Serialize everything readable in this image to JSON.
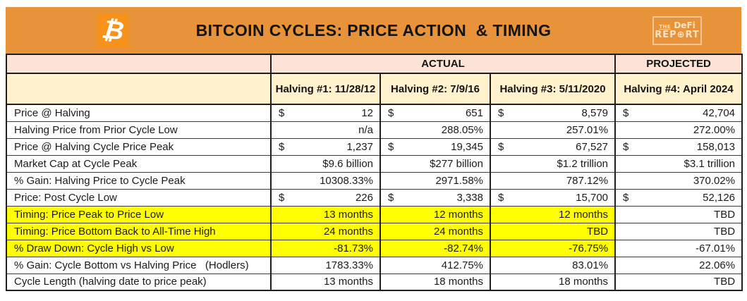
{
  "colors": {
    "titlebar_orange": "#E8923A",
    "bitcoin_orange": "#F7931A",
    "group_header_peach": "#FBE4D5",
    "column_header_cream": "#FFF2CC",
    "highlight_yellow": "#FFFF00"
  },
  "header": {
    "title": "BITCOIN CYCLES: PRICE ACTION  & TIMING",
    "bitcoin_symbol": "₿",
    "logo": {
      "the": "THE",
      "defi": "DeFi",
      "report": "REP⊕RT"
    }
  },
  "chart_data": {
    "type": "table",
    "title": "BITCOIN CYCLES: PRICE ACTION & TIMING",
    "group_headers": [
      {
        "label": "ACTUAL",
        "span": 3
      },
      {
        "label": "PROJECTED",
        "span": 1
      }
    ],
    "columns": [
      "Halving #1: 11/28/12",
      "Halving #2: 7/9/16",
      "Halving #3: 5/11/2020",
      "Halving #4: April 2024"
    ],
    "rows": [
      {
        "label": "Price @ Halving",
        "highlight": false,
        "cells": [
          {
            "cur": "$",
            "val": "12"
          },
          {
            "cur": "$",
            "val": "651"
          },
          {
            "cur": "$",
            "val": "8,579"
          },
          {
            "cur": "$",
            "val": "42,704"
          }
        ]
      },
      {
        "label": "Halving Price from Prior Cycle Low",
        "highlight": false,
        "cells": [
          {
            "val": "n/a"
          },
          {
            "val": "288.05%"
          },
          {
            "val": "257.01%"
          },
          {
            "val": "272.00%"
          }
        ]
      },
      {
        "label": "Price @ Halving Cycle Price Peak",
        "highlight": false,
        "cells": [
          {
            "cur": "$",
            "val": "1,237"
          },
          {
            "cur": "$",
            "val": "19,345"
          },
          {
            "cur": "$",
            "val": "67,527"
          },
          {
            "cur": "$",
            "val": "158,013"
          }
        ]
      },
      {
        "label": "Market Cap at Cycle Peak",
        "highlight": false,
        "cells": [
          {
            "val": "$9.6 billion"
          },
          {
            "val": "$277 billion"
          },
          {
            "val": "$1.2 trillion"
          },
          {
            "val": "$3.1 trillion"
          }
        ]
      },
      {
        "label": "% Gain: Halving Price to Cycle Peak",
        "highlight": false,
        "cells": [
          {
            "val": "10308.33%"
          },
          {
            "val": "2971.58%"
          },
          {
            "val": "787.12%"
          },
          {
            "val": "370.02%"
          }
        ]
      },
      {
        "label": "Price: Post Cycle Low",
        "highlight": false,
        "cells": [
          {
            "cur": "$",
            "val": "226"
          },
          {
            "cur": "$",
            "val": "3,338"
          },
          {
            "cur": "$",
            "val": "15,700"
          },
          {
            "cur": "$",
            "val": "52,126"
          }
        ]
      },
      {
        "label": "Timing: Price Peak to Price Low",
        "highlight": true,
        "cells": [
          {
            "val": "13 months"
          },
          {
            "val": "12 months"
          },
          {
            "val": "12 months"
          },
          {
            "val": "TBD"
          }
        ]
      },
      {
        "label": "Timing: Price Bottom Back to All-Time High",
        "highlight": true,
        "cells": [
          {
            "val": "24 months"
          },
          {
            "val": "24 months"
          },
          {
            "val": "TBD"
          },
          {
            "val": "TBD"
          }
        ]
      },
      {
        "label": "% Draw Down: Cycle High vs Low",
        "highlight": true,
        "cells": [
          {
            "val": "-81.73%"
          },
          {
            "val": "-82.74%"
          },
          {
            "val": "-76.75%"
          },
          {
            "val": "-67.01%"
          }
        ]
      },
      {
        "label": "% Gain: Cycle Bottom vs Halving Price   (Hodlers)",
        "highlight": false,
        "cells": [
          {
            "val": "1783.33%"
          },
          {
            "val": "412.75%"
          },
          {
            "val": "83.01%"
          },
          {
            "val": "22.06%"
          }
        ]
      },
      {
        "label": "Cycle Length (halving date to price peak)",
        "highlight": false,
        "cells": [
          {
            "val": "13 months"
          },
          {
            "val": "18 months"
          },
          {
            "val": "18 months"
          },
          {
            "val": "TBD"
          }
        ]
      }
    ]
  }
}
